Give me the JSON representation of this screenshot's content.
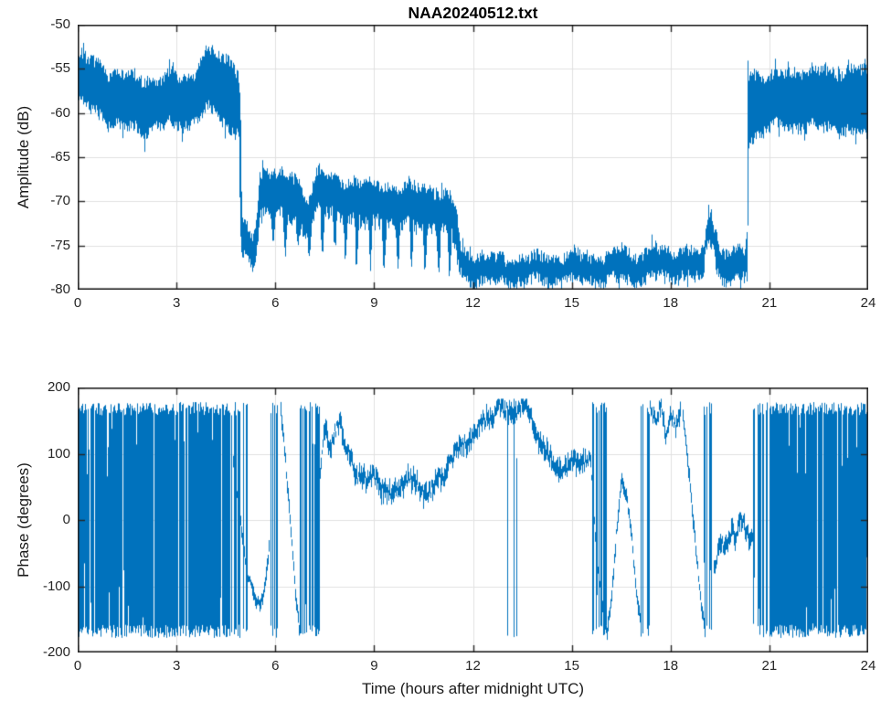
{
  "figure": {
    "background": "#ffffff",
    "axis_color": "#262626",
    "grid_color": "#e0e0e0",
    "tick_label_color": "#262626",
    "line_color": "#0072BD"
  },
  "chart_data": [
    {
      "type": "line",
      "id": "amplitude",
      "title": "NAA20240512.txt",
      "xlabel": "",
      "ylabel": "Amplitude (dB)",
      "xlim": [
        0,
        24
      ],
      "ylim": [
        -80,
        -50
      ],
      "xticks": [
        0,
        3,
        6,
        9,
        12,
        15,
        18,
        21,
        24
      ],
      "yticks": [
        -80,
        -75,
        -70,
        -65,
        -60,
        -55,
        -50
      ],
      "grid": true,
      "legend": null,
      "series_description": "Received VLF signal amplitude in dB versus hours after midnight UTC; dense noisy band drawn as min/max envelope",
      "envelope_keyframes": [
        [
          0.0,
          -58.8,
          -53.6
        ],
        [
          0.3,
          -59.6,
          -54.2
        ],
        [
          0.6,
          -60.2,
          -54.6
        ],
        [
          1.0,
          -61.0,
          -55.3
        ],
        [
          1.5,
          -61.5,
          -55.8
        ],
        [
          2.0,
          -61.8,
          -56.0
        ],
        [
          2.4,
          -61.4,
          -56.2
        ],
        [
          2.8,
          -61.6,
          -55.9
        ],
        [
          3.2,
          -61.6,
          -56.2
        ],
        [
          3.5,
          -61.3,
          -56.2
        ],
        [
          3.65,
          -60.6,
          -55.2
        ],
        [
          3.72,
          -60.4,
          -53.7
        ],
        [
          3.9,
          -59.8,
          -53.4
        ],
        [
          4.1,
          -60.0,
          -53.4
        ],
        [
          4.3,
          -60.8,
          -53.6
        ],
        [
          4.55,
          -61.2,
          -53.8
        ],
        [
          4.75,
          -61.8,
          -54.3
        ],
        [
          4.88,
          -62.0,
          -55.5
        ],
        [
          4.93,
          -73.0,
          -58.0
        ],
        [
          4.98,
          -76.0,
          -72.0
        ],
        [
          5.1,
          -76.5,
          -73.0
        ],
        [
          5.22,
          -77.2,
          -73.5
        ],
        [
          5.32,
          -77.5,
          -73.8
        ],
        [
          5.42,
          -76.0,
          -71.5
        ],
        [
          5.52,
          -71.5,
          -66.8
        ],
        [
          5.7,
          -71.0,
          -66.4
        ],
        [
          5.9,
          -70.6,
          -66.3
        ],
        [
          6.2,
          -71.5,
          -67.0
        ],
        [
          6.5,
          -72.5,
          -67.6
        ],
        [
          6.8,
          -73.5,
          -68.8
        ],
        [
          7.0,
          -74.0,
          -69.8
        ],
        [
          7.15,
          -72.0,
          -67.5
        ],
        [
          7.3,
          -70.8,
          -66.6
        ],
        [
          7.6,
          -71.5,
          -67.4
        ],
        [
          8.0,
          -72.0,
          -67.8
        ],
        [
          8.4,
          -71.6,
          -67.4
        ],
        [
          8.8,
          -72.0,
          -67.9
        ],
        [
          9.2,
          -72.0,
          -68.0
        ],
        [
          9.6,
          -72.4,
          -68.2
        ],
        [
          10.0,
          -72.5,
          -68.5
        ],
        [
          10.4,
          -72.9,
          -68.7
        ],
        [
          10.8,
          -73.0,
          -69.0
        ],
        [
          11.1,
          -73.4,
          -69.4
        ],
        [
          11.35,
          -74.0,
          -70.0
        ],
        [
          11.5,
          -76.5,
          -71.5
        ],
        [
          11.6,
          -78.3,
          -75.3
        ],
        [
          12.0,
          -78.8,
          -75.9
        ],
        [
          12.5,
          -78.9,
          -76.2
        ],
        [
          13.0,
          -79.0,
          -76.4
        ],
        [
          13.5,
          -79.0,
          -76.5
        ],
        [
          14.0,
          -79.2,
          -76.6
        ],
        [
          14.5,
          -79.0,
          -76.5
        ],
        [
          15.0,
          -78.9,
          -76.4
        ],
        [
          15.5,
          -78.9,
          -76.3
        ],
        [
          16.0,
          -78.8,
          -76.0
        ],
        [
          16.45,
          -78.5,
          -75.2
        ],
        [
          16.8,
          -78.8,
          -75.8
        ],
        [
          17.2,
          -78.9,
          -76.0
        ],
        [
          17.6,
          -78.6,
          -75.6
        ],
        [
          18.0,
          -78.9,
          -76.0
        ],
        [
          18.4,
          -78.6,
          -75.7
        ],
        [
          18.8,
          -78.9,
          -76.0
        ],
        [
          19.0,
          -78.6,
          -75.9
        ],
        [
          19.07,
          -75.2,
          -72.6
        ],
        [
          19.15,
          -74.2,
          -71.3
        ],
        [
          19.28,
          -74.6,
          -71.8
        ],
        [
          19.38,
          -77.0,
          -73.5
        ],
        [
          19.5,
          -78.8,
          -75.8
        ],
        [
          19.8,
          -78.7,
          -75.7
        ],
        [
          20.1,
          -78.6,
          -75.6
        ],
        [
          20.25,
          -78.6,
          -75.4
        ],
        [
          20.32,
          -78.0,
          -73.5
        ],
        [
          20.36,
          -63.5,
          -55.4
        ],
        [
          20.6,
          -62.0,
          -55.5
        ],
        [
          21.0,
          -61.6,
          -55.9
        ],
        [
          21.5,
          -61.6,
          -55.7
        ],
        [
          22.0,
          -61.7,
          -55.5
        ],
        [
          22.5,
          -61.9,
          -55.6
        ],
        [
          23.0,
          -61.6,
          -55.2
        ],
        [
          23.5,
          -61.9,
          -54.9
        ],
        [
          24.0,
          -62.0,
          -55.2
        ]
      ],
      "dips": [
        [
          5.92,
          -75.5
        ],
        [
          6.3,
          -76.5
        ],
        [
          6.68,
          -75.0
        ],
        [
          7.02,
          -76.5
        ],
        [
          7.42,
          -77.5
        ],
        [
          7.8,
          -76.0
        ],
        [
          8.12,
          -77.0
        ],
        [
          8.46,
          -78.2
        ],
        [
          8.88,
          -78.6
        ],
        [
          9.29,
          -78.6
        ],
        [
          9.71,
          -78.9
        ],
        [
          10.12,
          -78.6
        ],
        [
          10.54,
          -78.9
        ],
        [
          10.95,
          -78.6
        ],
        [
          11.28,
          -78.9
        ]
      ],
      "dip_half_width_hours": 0.065,
      "spike": {
        "t": 20.34,
        "top": -54.0
      }
    },
    {
      "type": "line",
      "id": "phase",
      "title": "",
      "xlabel": "Time (hours after midnight UTC)",
      "ylabel": "Phase (degrees)",
      "xlim": [
        0,
        24
      ],
      "ylim": [
        -200,
        200
      ],
      "xticks": [
        0,
        3,
        6,
        9,
        12,
        15,
        18,
        21,
        24
      ],
      "yticks": [
        -200,
        -100,
        0,
        100,
        200
      ],
      "grid": true,
      "legend": null,
      "wrap_limit_degrees": 180,
      "series_description": "Received VLF signal phase in degrees (wrapped at +/-180) versus hours after midnight UTC; 'wrap' segments are dense full-range phase-wrapping, 'curve' segments are coherent phase keyframes",
      "segments": [
        {
          "type": "wrap",
          "t0": 0.0,
          "t1": 4.7,
          "density": 0.93
        },
        {
          "type": "wrap",
          "t0": 4.7,
          "t1": 5.15,
          "density": 0.4
        },
        {
          "type": "curve",
          "noise": 10,
          "points": [
            [
              4.7,
              90
            ],
            [
              4.9,
              10
            ],
            [
              5.1,
              -70
            ],
            [
              5.35,
              -120
            ],
            [
              5.55,
              -128
            ],
            [
              5.7,
              -90
            ],
            [
              5.82,
              -30
            ]
          ]
        },
        {
          "type": "wrap",
          "t0": 5.8,
          "t1": 6.15,
          "density": 0.5
        },
        {
          "type": "curve",
          "noise": 10,
          "points": [
            [
              6.15,
              170
            ],
            [
              6.3,
              90
            ],
            [
              6.5,
              -40
            ],
            [
              6.62,
              -120
            ],
            [
              6.72,
              -168
            ]
          ]
        },
        {
          "type": "wrap",
          "t0": 6.72,
          "t1": 7.35,
          "density": 0.55
        },
        {
          "type": "curve",
          "noise": 16,
          "points": [
            [
              7.35,
              60
            ],
            [
              7.5,
              140
            ],
            [
              7.65,
              100
            ],
            [
              7.8,
              140
            ],
            [
              7.95,
              150
            ],
            [
              8.1,
              110
            ],
            [
              8.25,
              92
            ]
          ]
        },
        {
          "type": "curve",
          "noise": 18,
          "points": [
            [
              8.25,
              92
            ],
            [
              8.5,
              68
            ],
            [
              8.75,
              58
            ],
            [
              9.0,
              66
            ],
            [
              9.25,
              48
            ],
            [
              9.55,
              38
            ],
            [
              9.8,
              55
            ],
            [
              10.05,
              62
            ],
            [
              10.3,
              52
            ],
            [
              10.55,
              40
            ],
            [
              10.8,
              48
            ],
            [
              11.05,
              65
            ],
            [
              11.3,
              88
            ],
            [
              11.55,
              105
            ],
            [
              11.8,
              118
            ],
            [
              12.05,
              132
            ],
            [
              12.3,
              148
            ],
            [
              12.55,
              160
            ],
            [
              12.8,
              168
            ],
            [
              13.05,
              160
            ],
            [
              13.3,
              168
            ],
            [
              13.55,
              172
            ],
            [
              13.75,
              158
            ],
            [
              13.95,
              132
            ],
            [
              14.15,
              108
            ],
            [
              14.35,
              92
            ],
            [
              14.55,
              80
            ],
            [
              14.75,
              76
            ],
            [
              14.95,
              82
            ],
            [
              15.15,
              88
            ],
            [
              15.35,
              92
            ],
            [
              15.55,
              98
            ]
          ]
        },
        {
          "type": "wrap",
          "t0": 12.95,
          "t1": 13.55,
          "density": 0.1
        },
        {
          "type": "curve",
          "noise": 8,
          "points": [
            [
              15.55,
              95
            ],
            [
              15.65,
              20
            ],
            [
              15.75,
              -60
            ],
            [
              15.9,
              -120
            ],
            [
              16.05,
              -168
            ]
          ]
        },
        {
          "type": "wrap",
          "t0": 15.55,
          "t1": 16.08,
          "density": 0.5
        },
        {
          "type": "curve",
          "noise": 10,
          "points": [
            [
              16.05,
              -170
            ],
            [
              16.2,
              -120
            ],
            [
              16.35,
              -20
            ],
            [
              16.5,
              58
            ],
            [
              16.65,
              42
            ],
            [
              16.8,
              -20
            ],
            [
              16.95,
              -110
            ],
            [
              17.1,
              -168
            ]
          ]
        },
        {
          "type": "wrap",
          "t0": 17.08,
          "t1": 17.4,
          "density": 0.5
        },
        {
          "type": "curve",
          "noise": 14,
          "points": [
            [
              17.35,
              172
            ],
            [
              17.55,
              150
            ],
            [
              17.7,
              170
            ],
            [
              17.85,
              125
            ],
            [
              18.0,
              165
            ],
            [
              18.15,
              140
            ],
            [
              18.3,
              165
            ]
          ]
        },
        {
          "type": "wrap",
          "t0": 17.35,
          "t1": 18.35,
          "density": 0.06
        },
        {
          "type": "curve",
          "noise": 10,
          "points": [
            [
              18.35,
              162
            ],
            [
              18.55,
              70
            ],
            [
              18.75,
              -40
            ],
            [
              18.95,
              -140
            ],
            [
              19.05,
              -170
            ]
          ]
        },
        {
          "type": "wrap",
          "t0": 19.0,
          "t1": 19.35,
          "density": 0.45
        },
        {
          "type": "curve",
          "noise": 16,
          "points": [
            [
              19.3,
              -70
            ],
            [
              19.5,
              -30
            ],
            [
              19.65,
              -45
            ],
            [
              19.85,
              -18
            ],
            [
              20.0,
              -28
            ],
            [
              20.1,
              12
            ],
            [
              20.25,
              -12
            ],
            [
              20.4,
              -35
            ],
            [
              20.55,
              -25
            ]
          ]
        },
        {
          "type": "wrap",
          "t0": 20.45,
          "t1": 21.0,
          "density": 0.55
        },
        {
          "type": "wrap",
          "t0": 21.0,
          "t1": 24.0,
          "density": 0.94
        }
      ]
    }
  ]
}
